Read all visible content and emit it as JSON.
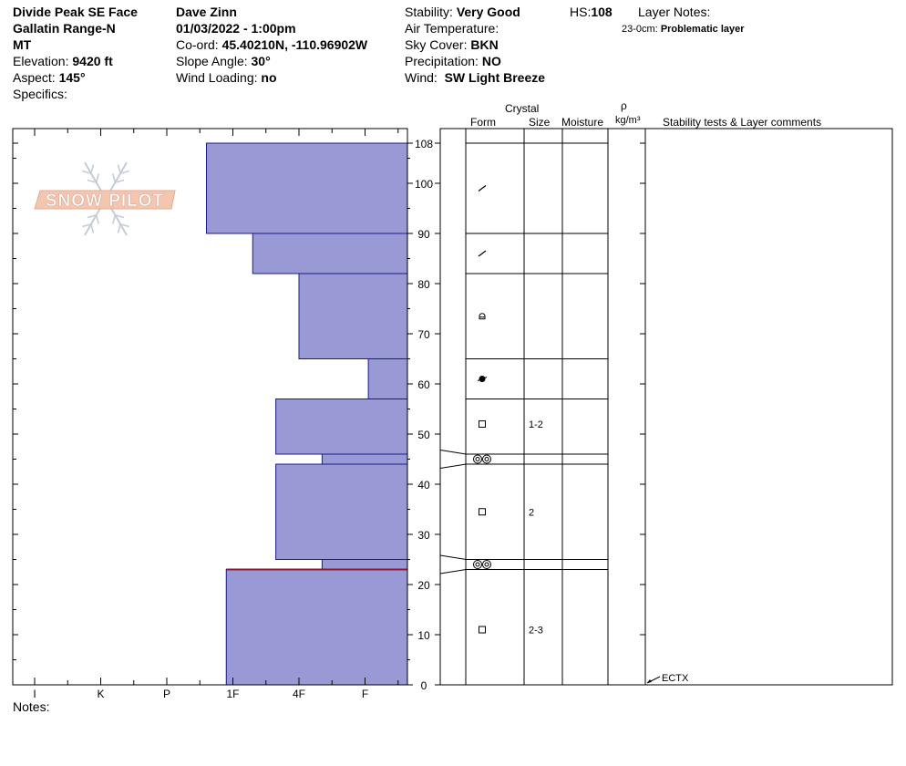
{
  "header": {
    "location": "Divide Peak SE Face",
    "range": "Gallatin Range-N",
    "state": "MT",
    "elevation_label": "Elevation:",
    "elevation": "9420 ft",
    "aspect_label": "Aspect:",
    "aspect": "145°",
    "specifics_label": "Specifics:",
    "observer": "Dave Zinn",
    "datetime": "01/03/2022 - 1:00pm",
    "coord_label": "Co-ord:",
    "coord": "45.40210N, -110.96902W",
    "slope_label": "Slope Angle:",
    "slope": "30°",
    "wind_loading_label": "Wind Loading:",
    "wind_loading": "no",
    "stability_label": "Stability:",
    "stability": "Very Good",
    "air_temp_label": "Air Temperature:",
    "sky_label": "Sky Cover:",
    "sky": "BKN",
    "precip_label": "Precipitation:",
    "precip": "NO",
    "wind_label": "Wind:",
    "wind": "SW Light Breeze",
    "hs_label": "HS:",
    "hs": "108",
    "layer_notes_label": "Layer Notes:",
    "layer_note_range": "23-0cm:",
    "layer_note_text": "Problematic layer"
  },
  "logo_text": "SNOW PILOT",
  "notes_label": "Notes:",
  "columns": {
    "crystal": "Crystal",
    "form": "Form",
    "size": "Size",
    "moisture": "Moisture",
    "rho": "ρ",
    "density_unit": "kg/m³",
    "comments": "Stability tests & Layer comments"
  },
  "stability_test": "ECTX",
  "colors": {
    "hardness_fill": "#9999d6",
    "hardness_stroke": "#1a1a8c",
    "weak_layer_line": "#8b1a3a"
  },
  "chart_data": {
    "type": "bar",
    "orientation": "horizontal",
    "title": "",
    "xlabel": "",
    "ylabel": "",
    "ylim": [
      0,
      108
    ],
    "y_ticks": [
      0,
      10,
      20,
      30,
      40,
      50,
      60,
      70,
      80,
      90,
      100,
      108
    ],
    "hardness_ticks": [
      "I",
      "K",
      "P",
      "1F",
      "4F",
      "F"
    ],
    "layers": [
      {
        "top": 108,
        "bottom": 90,
        "hardness": 3.6,
        "form": "precip-particles",
        "size": "",
        "icon_height": 99
      },
      {
        "top": 90,
        "bottom": 82,
        "hardness": 4.3,
        "form": "precip-particles",
        "size": "",
        "icon_height": 86
      },
      {
        "top": 82,
        "bottom": 65,
        "hardness": 5.0,
        "form": "rounded-faceted",
        "size": "",
        "icon_height": 73.5
      },
      {
        "top": 65,
        "bottom": 57,
        "hardness": 6.05,
        "form": "melt-freeze",
        "size": "",
        "icon_height": 61
      },
      {
        "top": 57,
        "bottom": 46,
        "hardness": 4.65,
        "form": "faceted",
        "size": "1-2",
        "icon_height": 52
      },
      {
        "top": 46,
        "bottom": 44,
        "hardness": 5.35,
        "form": "surface-hoar-pair",
        "size": "",
        "icon_height": 45
      },
      {
        "top": 44,
        "bottom": 25,
        "hardness": 4.65,
        "form": "faceted",
        "size": "2",
        "icon_height": 34.5
      },
      {
        "top": 25,
        "bottom": 23,
        "hardness": 5.35,
        "form": "surface-hoar-pair",
        "size": "",
        "icon_height": 24
      },
      {
        "top": 23,
        "bottom": 0,
        "hardness": 3.9,
        "form": "faceted",
        "size": "2-3",
        "icon_height": 11
      }
    ],
    "weak_layer": 23,
    "test_height": 0
  }
}
